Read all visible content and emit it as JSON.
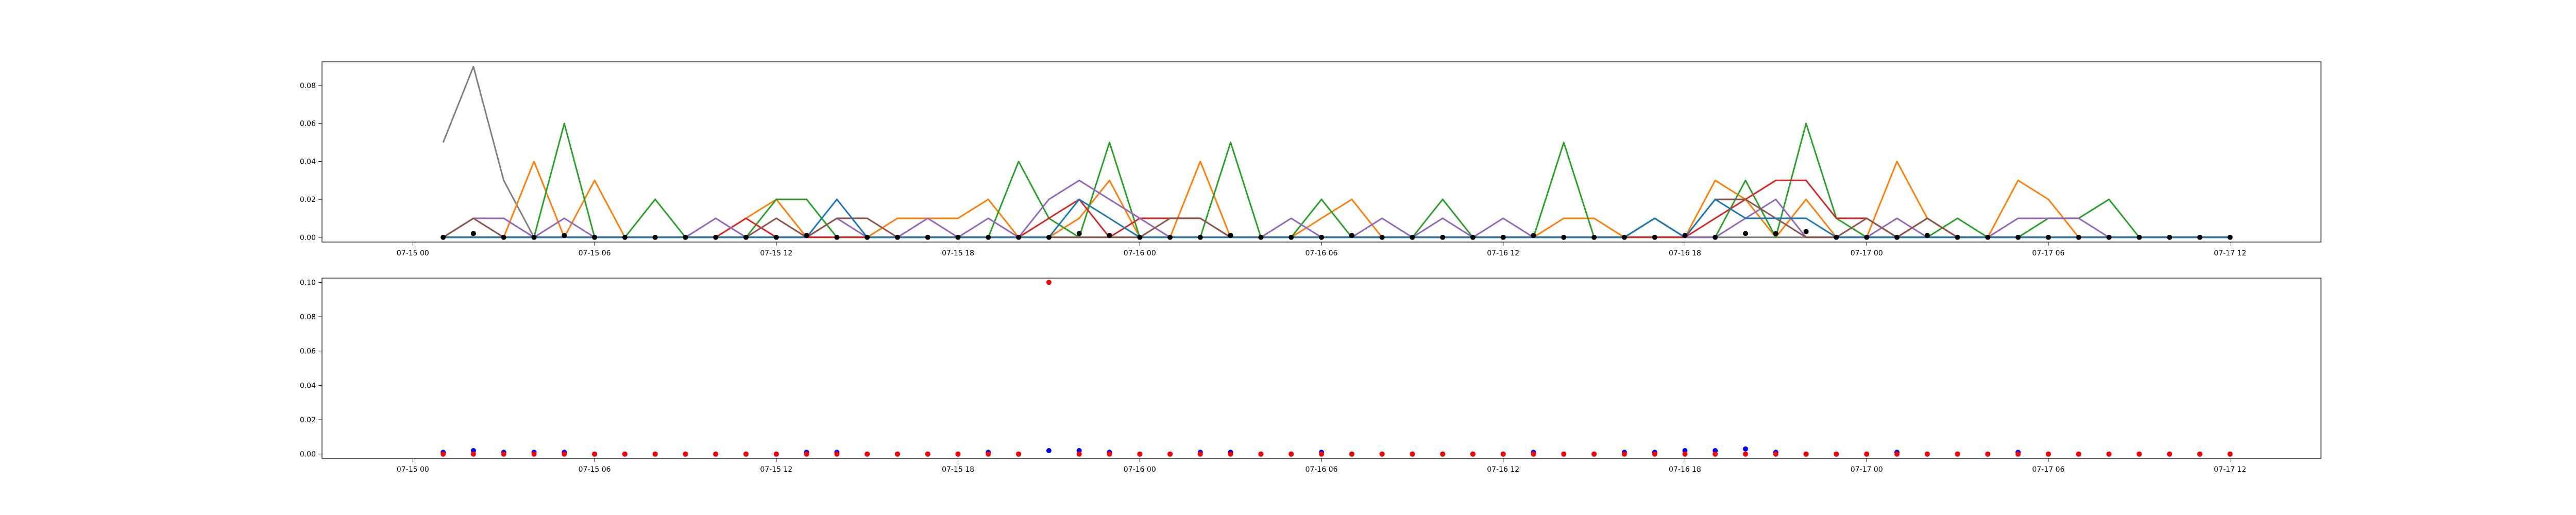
{
  "chart_data": [
    {
      "type": "line",
      "title": "",
      "xlabel": "",
      "ylabel": "",
      "x_tick_labels": [
        "07-15 00",
        "07-15 06",
        "07-15 12",
        "07-15 18",
        "07-16 00",
        "07-16 06",
        "07-16 12",
        "07-16 18",
        "07-17 00",
        "07-17 06",
        "07-17 12"
      ],
      "y_tick_labels": [
        "0.00",
        "0.02",
        "0.04",
        "0.06",
        "0.08"
      ],
      "ylim": [
        -0.0025,
        0.0925
      ],
      "x_hours": [
        1,
        2,
        3,
        4,
        5,
        6,
        7,
        8,
        9,
        10,
        11,
        12,
        13,
        14,
        15,
        16,
        17,
        18,
        19,
        20,
        21,
        22,
        23,
        24,
        25,
        26,
        27,
        28,
        29,
        30,
        31,
        32,
        33,
        34,
        35,
        36,
        37,
        38,
        39,
        40,
        41,
        42,
        43,
        44,
        45,
        46,
        47,
        48,
        49,
        50,
        51,
        52,
        53,
        54,
        55,
        56,
        57,
        58,
        59,
        60
      ],
      "series": [
        {
          "color": "#7f7f7f",
          "style": "line",
          "values": [
            0.05,
            0.09,
            0.03,
            0,
            0,
            0,
            0,
            0,
            0,
            0,
            0,
            0,
            0,
            0,
            0,
            0,
            0,
            0,
            0,
            0,
            0,
            0,
            0,
            0,
            0,
            0,
            0,
            0,
            0,
            0,
            0,
            0,
            0,
            0,
            0,
            0,
            0,
            0,
            0,
            0,
            0,
            0,
            0,
            0,
            0,
            0,
            0,
            0,
            0,
            0,
            0,
            0,
            0,
            0,
            0,
            0,
            0,
            0,
            0,
            0
          ]
        },
        {
          "color": "#ff7f0e",
          "style": "line",
          "values": [
            0,
            0,
            0,
            0.04,
            0,
            0.03,
            0,
            0,
            0,
            0,
            0.01,
            0.02,
            0,
            0,
            0,
            0.01,
            0.01,
            0.01,
            0.02,
            0,
            0,
            0.01,
            0.03,
            0,
            0,
            0.04,
            0,
            0,
            0,
            0.01,
            0.02,
            0,
            0,
            0,
            0,
            0,
            0,
            0.01,
            0.01,
            0,
            0,
            0,
            0.03,
            0.02,
            0,
            0.02,
            0,
            0,
            0.04,
            0.01,
            0,
            0,
            0.03,
            0.02,
            0,
            0,
            0,
            0,
            0,
            0
          ]
        },
        {
          "color": "#2ca02c",
          "style": "line",
          "values": [
            0,
            0,
            0,
            0,
            0.06,
            0,
            0,
            0.02,
            0,
            0,
            0,
            0.02,
            0.02,
            0,
            0,
            0,
            0,
            0,
            0,
            0.04,
            0.01,
            0,
            0.05,
            0,
            0,
            0,
            0.05,
            0,
            0,
            0.02,
            0,
            0,
            0,
            0.02,
            0,
            0,
            0,
            0.05,
            0,
            0,
            0,
            0,
            0,
            0.03,
            0,
            0.06,
            0.01,
            0,
            0,
            0,
            0.01,
            0,
            0,
            0.01,
            0.01,
            0.02,
            0,
            0,
            0,
            0
          ]
        },
        {
          "color": "#d62728",
          "style": "line",
          "values": [
            0,
            0,
            0,
            0,
            0,
            0,
            0,
            0,
            0,
            0,
            0.01,
            0,
            0,
            0,
            0,
            0,
            0,
            0,
            0,
            0,
            0.01,
            0.02,
            0,
            0.01,
            0.01,
            0.01,
            0,
            0,
            0,
            0,
            0,
            0,
            0,
            0,
            0,
            0,
            0,
            0,
            0,
            0,
            0,
            0,
            0.01,
            0.02,
            0.03,
            0.03,
            0.01,
            0.01,
            0,
            0.01,
            0,
            0,
            0,
            0,
            0,
            0,
            0,
            0,
            0,
            0
          ]
        },
        {
          "color": "#9467bd",
          "style": "line",
          "values": [
            0,
            0.01,
            0.01,
            0,
            0.01,
            0,
            0,
            0,
            0,
            0.01,
            0,
            0,
            0,
            0.01,
            0,
            0,
            0.01,
            0,
            0.01,
            0,
            0.02,
            0.03,
            0.02,
            0.01,
            0,
            0,
            0,
            0,
            0.01,
            0,
            0,
            0.01,
            0,
            0.01,
            0,
            0.01,
            0,
            0,
            0,
            0,
            0.01,
            0,
            0,
            0.01,
            0.02,
            0,
            0,
            0,
            0.01,
            0,
            0,
            0,
            0.01,
            0.01,
            0.01,
            0,
            0,
            0,
            0,
            0
          ]
        },
        {
          "color": "#8c564b",
          "style": "line",
          "values": [
            0,
            0.01,
            0,
            0,
            0,
            0,
            0,
            0,
            0,
            0,
            0,
            0.01,
            0,
            0.01,
            0.01,
            0,
            0,
            0,
            0,
            0,
            0,
            0,
            0,
            0,
            0.01,
            0.01,
            0,
            0,
            0,
            0,
            0,
            0,
            0,
            0,
            0,
            0,
            0,
            0,
            0,
            0,
            0.01,
            0,
            0.02,
            0.02,
            0.01,
            0,
            0,
            0.01,
            0,
            0.01,
            0,
            0,
            0,
            0,
            0,
            0,
            0,
            0,
            0,
            0
          ]
        },
        {
          "color": "#1f77b4",
          "style": "line",
          "values": [
            0,
            0,
            0,
            0,
            0,
            0,
            0,
            0,
            0,
            0,
            0,
            0,
            0,
            0.02,
            0,
            0,
            0,
            0,
            0,
            0,
            0,
            0.02,
            0.01,
            0,
            0,
            0,
            0,
            0,
            0,
            0,
            0,
            0,
            0,
            0,
            0,
            0,
            0,
            0,
            0,
            0,
            0.01,
            0,
            0.02,
            0.01,
            0.01,
            0.01,
            0,
            0,
            0,
            0,
            0,
            0,
            0,
            0,
            0,
            0,
            0,
            0,
            0,
            0
          ]
        },
        {
          "color": "#000000",
          "style": "points",
          "values": [
            0,
            0.002,
            0,
            0,
            0.001,
            0,
            0,
            0,
            0,
            0,
            0,
            0,
            0.001,
            0,
            0,
            0,
            0,
            0,
            0,
            0,
            0,
            0.002,
            0.001,
            0,
            0,
            0,
            0.001,
            0,
            0,
            0,
            0.001,
            0,
            0,
            0,
            0,
            0,
            0.001,
            0,
            0,
            0,
            0,
            0.001,
            0,
            0.002,
            0.002,
            0.003,
            0,
            0,
            0,
            0.001,
            0,
            0,
            0,
            0,
            0,
            0,
            0,
            0,
            0,
            0
          ]
        }
      ]
    },
    {
      "type": "scatter",
      "title": "",
      "xlabel": "",
      "ylabel": "",
      "x_tick_labels": [
        "07-15 00",
        "07-15 06",
        "07-15 12",
        "07-15 18",
        "07-16 00",
        "07-16 06",
        "07-16 12",
        "07-16 18",
        "07-17 00",
        "07-17 06",
        "07-17 12"
      ],
      "y_tick_labels": [
        "0.00",
        "0.02",
        "0.04",
        "0.06",
        "0.08",
        "0.10"
      ],
      "ylim": [
        -0.0025,
        0.1025
      ],
      "x_hours": [
        1,
        2,
        3,
        4,
        5,
        6,
        7,
        8,
        9,
        10,
        11,
        12,
        13,
        14,
        15,
        16,
        17,
        18,
        19,
        20,
        21,
        22,
        23,
        24,
        25,
        26,
        27,
        28,
        29,
        30,
        31,
        32,
        33,
        34,
        35,
        36,
        37,
        38,
        39,
        40,
        41,
        42,
        43,
        44,
        45,
        46,
        47,
        48,
        49,
        50,
        51,
        52,
        53,
        54,
        55,
        56,
        57,
        58,
        59,
        60
      ],
      "series": [
        {
          "color": "#0000ff",
          "values": [
            0.001,
            0.002,
            0.001,
            0.001,
            0.001,
            0,
            0,
            0,
            0,
            0,
            0,
            0,
            0.001,
            0.001,
            0,
            0,
            0,
            0,
            0.001,
            0,
            0.002,
            0.002,
            0.001,
            0,
            0,
            0.001,
            0.001,
            0,
            0,
            0.001,
            0,
            0,
            0,
            0,
            0,
            0,
            0.001,
            0,
            0,
            0.001,
            0.001,
            0.002,
            0.002,
            0.003,
            0.001,
            0,
            0,
            0,
            0.001,
            0,
            0,
            0,
            0.001,
            0,
            0,
            0,
            0,
            0,
            0,
            0
          ]
        },
        {
          "color": "#ff0000",
          "values": [
            0,
            0,
            0,
            0,
            0,
            0,
            0,
            0,
            0,
            0,
            0,
            0,
            0,
            0,
            0,
            0,
            0,
            0,
            0,
            0,
            0.1,
            0,
            0,
            0,
            0,
            0,
            0,
            0,
            0,
            0,
            0,
            0,
            0,
            0,
            0,
            0,
            0,
            0,
            0,
            0,
            0,
            0,
            0,
            0,
            0,
            0,
            0,
            0,
            0,
            0,
            0,
            0,
            0,
            0,
            0,
            0,
            0,
            0,
            0,
            0
          ]
        }
      ]
    }
  ]
}
